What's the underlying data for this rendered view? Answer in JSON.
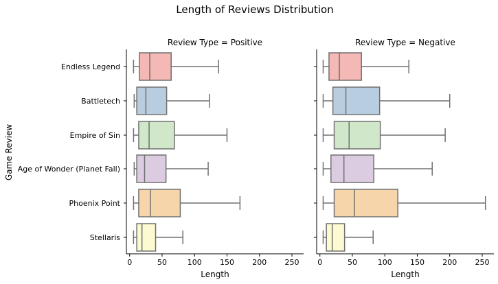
{
  "chart_data": {
    "type": "box",
    "title": "Length of Reviews Distribution",
    "ylabel": "Game Review",
    "xlabel": "Length",
    "xlim": [
      -5,
      268
    ],
    "xticks": [
      0,
      50,
      100,
      150,
      200,
      250
    ],
    "categories": [
      "Endless Legend",
      "Battletech",
      "Empire of Sin",
      "Age of Wonder (Planet Fall)",
      "Phoenix Point",
      "Stellaris"
    ],
    "colors": [
      "#f4b8b5",
      "#b9cde0",
      "#d0e7c9",
      "#dbcce2",
      "#f6d5aa",
      "#fbfad0"
    ],
    "panels": [
      {
        "title": "Review Type = Positive",
        "boxes": [
          {
            "min": 6,
            "q1": 15,
            "median": 31,
            "q3": 64,
            "max": 137
          },
          {
            "min": 7,
            "q1": 11,
            "median": 25,
            "q3": 57,
            "max": 123
          },
          {
            "min": 6,
            "q1": 14,
            "median": 30,
            "q3": 69,
            "max": 150
          },
          {
            "min": 7,
            "q1": 11,
            "median": 23,
            "q3": 56,
            "max": 121
          },
          {
            "min": 6,
            "q1": 14,
            "median": 32,
            "q3": 78,
            "max": 170
          },
          {
            "min": 6,
            "q1": 11,
            "median": 19,
            "q3": 40,
            "max": 82
          }
        ]
      },
      {
        "title": "Review Type = Negative",
        "boxes": [
          {
            "min": 5,
            "q1": 14,
            "median": 30,
            "q3": 64,
            "max": 137
          },
          {
            "min": 5,
            "q1": 20,
            "median": 40,
            "q3": 92,
            "max": 200
          },
          {
            "min": 5,
            "q1": 22,
            "median": 45,
            "q3": 93,
            "max": 193
          },
          {
            "min": 5,
            "q1": 17,
            "median": 37,
            "q3": 83,
            "max": 173
          },
          {
            "min": 5,
            "q1": 22,
            "median": 53,
            "q3": 120,
            "max": 255
          },
          {
            "min": 5,
            "q1": 10,
            "median": 19,
            "q3": 38,
            "max": 82
          }
        ]
      }
    ]
  }
}
